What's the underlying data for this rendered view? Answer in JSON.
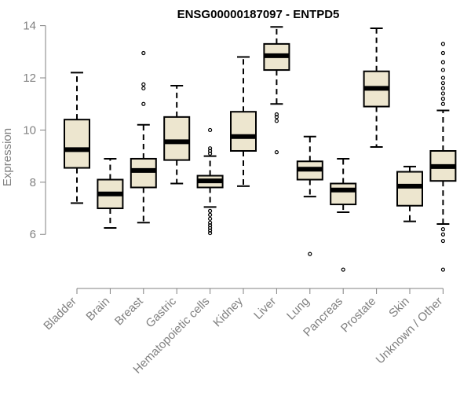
{
  "chart_data": {
    "type": "box",
    "title": "ENSG00000187097 - ENTPD5",
    "xlabel": "",
    "ylabel": "Expression",
    "ylim": [
      4.2,
      14.2
    ],
    "yticks": [
      6,
      8,
      10,
      12,
      14
    ],
    "box_fill": "#ede6cf",
    "axis_color": "#808080",
    "categories": [
      "Bladder",
      "Brain",
      "Breast",
      "Gastric",
      "Hematopoietic cells",
      "Kidney",
      "Liver",
      "Lung",
      "Pancreas",
      "Prostate",
      "Skin",
      "Unknown / Other"
    ],
    "boxes": [
      {
        "label": "Bladder",
        "whisker_low": 7.2,
        "q1": 8.55,
        "median": 9.25,
        "q3": 10.4,
        "whisker_high": 12.2,
        "outliers": []
      },
      {
        "label": "Brain",
        "whisker_low": 6.25,
        "q1": 7.0,
        "median": 7.55,
        "q3": 8.1,
        "whisker_high": 8.9,
        "outliers": []
      },
      {
        "label": "Breast",
        "whisker_low": 6.45,
        "q1": 7.8,
        "median": 8.45,
        "q3": 8.9,
        "whisker_high": 10.2,
        "outliers": [
          11.0,
          11.6,
          11.75,
          12.95
        ]
      },
      {
        "label": "Gastric",
        "whisker_low": 7.95,
        "q1": 8.85,
        "median": 9.55,
        "q3": 10.5,
        "whisker_high": 11.7,
        "outliers": []
      },
      {
        "label": "Hematopoietic cells",
        "whisker_low": 7.05,
        "q1": 7.8,
        "median": 8.05,
        "q3": 8.25,
        "whisker_high": 9.0,
        "outliers": [
          10.0,
          9.3,
          9.2,
          9.1,
          6.9,
          6.75,
          6.6,
          6.45,
          6.35,
          6.25,
          6.15,
          6.05
        ]
      },
      {
        "label": "Kidney",
        "whisker_low": 7.85,
        "q1": 9.2,
        "median": 9.75,
        "q3": 10.7,
        "whisker_high": 12.8,
        "outliers": []
      },
      {
        "label": "Liver",
        "whisker_low": 11.0,
        "q1": 12.3,
        "median": 12.85,
        "q3": 13.3,
        "whisker_high": 13.95,
        "outliers": [
          10.6,
          10.5,
          10.35,
          9.15
        ]
      },
      {
        "label": "Lung",
        "whisker_low": 7.45,
        "q1": 8.1,
        "median": 8.5,
        "q3": 8.8,
        "whisker_high": 9.75,
        "outliers": [
          5.25
        ]
      },
      {
        "label": "Pancreas",
        "whisker_low": 6.85,
        "q1": 7.15,
        "median": 7.7,
        "q3": 7.95,
        "whisker_high": 8.9,
        "outliers": [
          4.65
        ]
      },
      {
        "label": "Prostate",
        "whisker_low": 9.35,
        "q1": 10.9,
        "median": 11.6,
        "q3": 12.25,
        "whisker_high": 13.9,
        "outliers": []
      },
      {
        "label": "Skin",
        "whisker_low": 6.5,
        "q1": 7.1,
        "median": 7.85,
        "q3": 8.4,
        "whisker_high": 8.6,
        "outliers": []
      },
      {
        "label": "Unknown / Other",
        "whisker_low": 6.4,
        "q1": 8.05,
        "median": 8.6,
        "q3": 9.2,
        "whisker_high": 10.75,
        "outliers": [
          13.3,
          12.95,
          12.6,
          12.3,
          12.0,
          11.8,
          11.6,
          11.4,
          11.2,
          11.0,
          6.2,
          6.0,
          5.75,
          4.65
        ]
      }
    ]
  }
}
